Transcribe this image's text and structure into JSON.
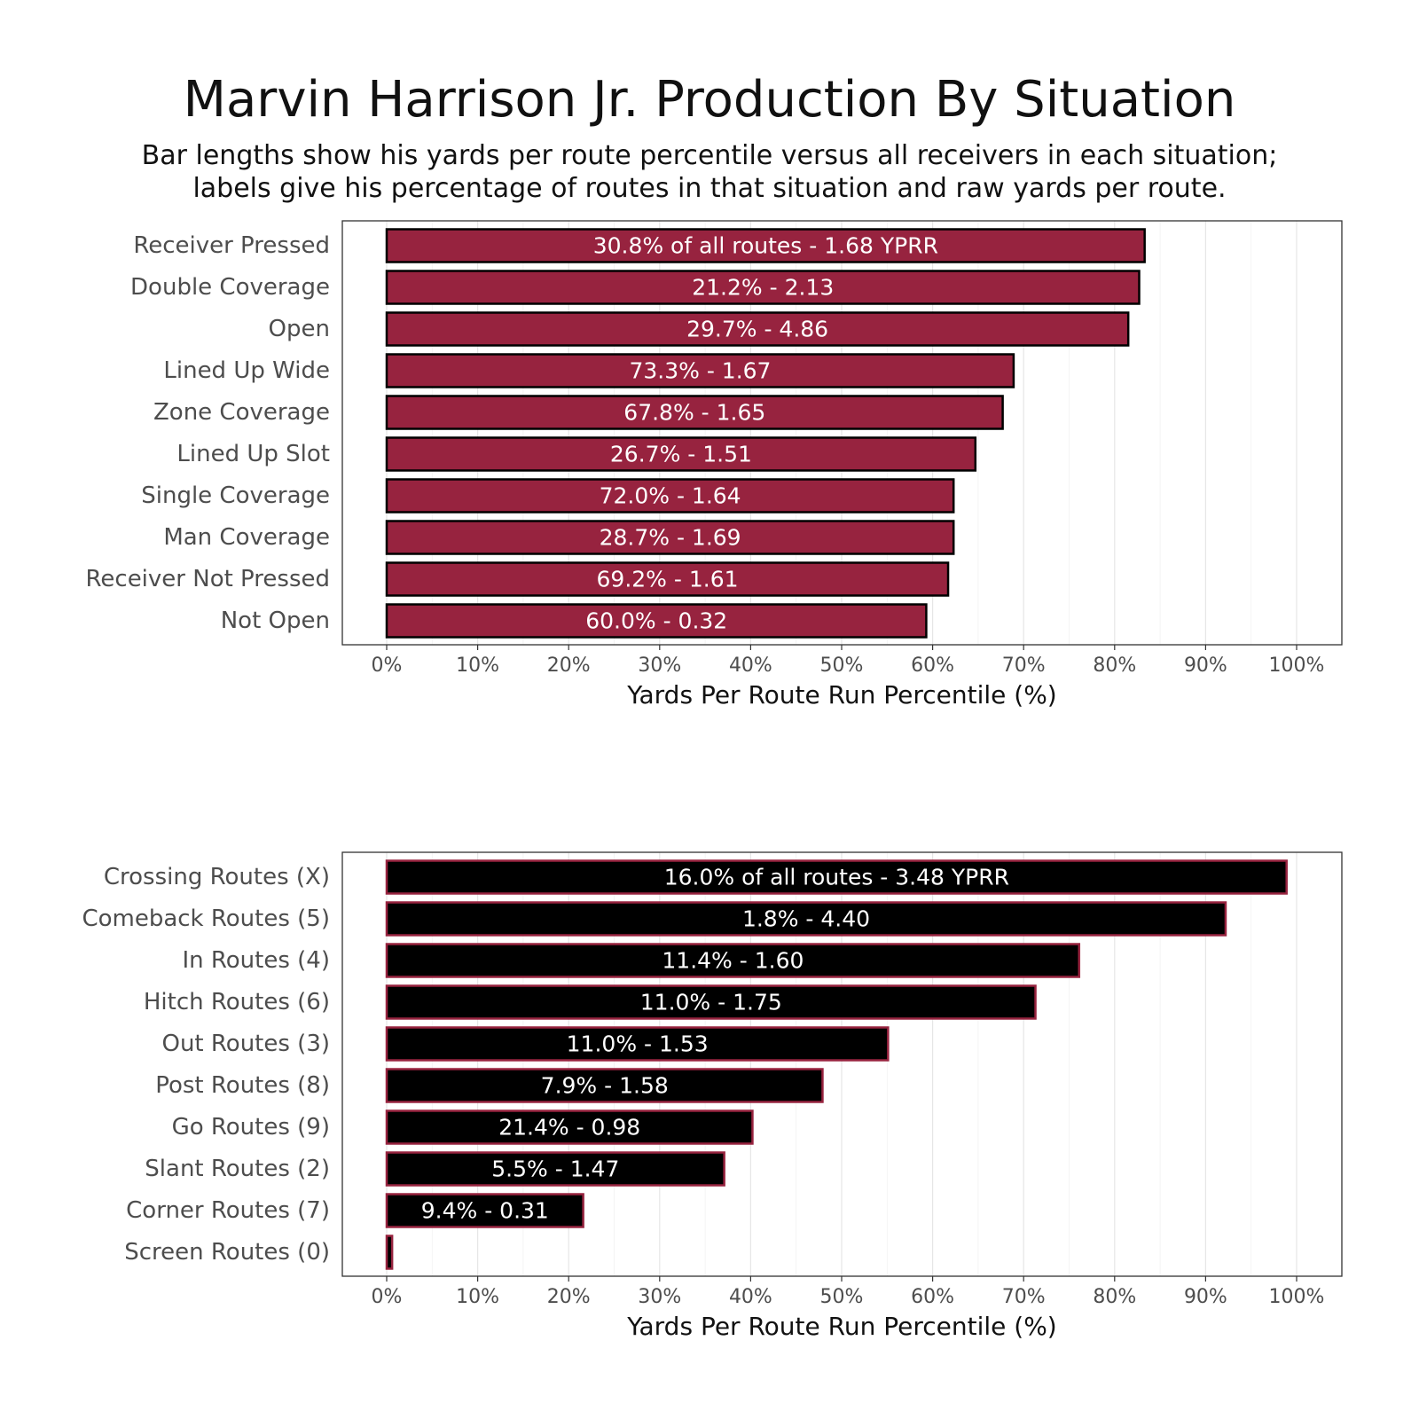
{
  "title": "Marvin Harrison Jr. Production By Situation",
  "subtitle_lines": [
    "Bar lengths show his yards per route percentile versus all receivers in each situation;",
    "labels give his percentage of routes in that situation and raw yards per route."
  ],
  "colors": {
    "top_fill": "#97233F",
    "top_stroke": "#000000",
    "bottom_fill": "#000000",
    "bottom_stroke": "#97233F"
  },
  "chart_data": [
    {
      "type": "bar",
      "orientation": "horizontal",
      "categories": [
        "Receiver Pressed",
        "Double Coverage",
        "Open",
        "Lined Up Wide",
        "Zone Coverage",
        "Lined Up Slot",
        "Single Coverage",
        "Man Coverage",
        "Receiver Not Pressed",
        "Not Open"
      ],
      "values": [
        83.3,
        82.7,
        81.5,
        68.9,
        67.7,
        64.7,
        62.3,
        62.3,
        61.7,
        59.3
      ],
      "labels": [
        "30.8% of all routes - 1.68 YPRR",
        "21.2% - 2.13",
        "29.7% - 4.86",
        "73.3% - 1.67",
        "67.8% - 1.65",
        "26.7% - 1.51",
        "72.0% - 1.64",
        "28.7% - 1.69",
        "69.2% - 1.61",
        "60.0% - 0.32"
      ],
      "xlabel": "Yards Per Route Run Percentile (%)",
      "xlim": [
        0,
        100
      ],
      "xticks": [
        "0%",
        "10%",
        "20%",
        "30%",
        "40%",
        "50%",
        "60%",
        "70%",
        "80%",
        "90%",
        "100%"
      ],
      "grid": true
    },
    {
      "type": "bar",
      "orientation": "horizontal",
      "categories": [
        "Crossing Routes (X)",
        "Comeback Routes (5)",
        "In Routes (4)",
        "Hitch Routes (6)",
        "Out Routes (3)",
        "Post Routes (8)",
        "Go Routes (9)",
        "Slant Routes (2)",
        "Corner Routes (7)",
        "Screen Routes (0)"
      ],
      "values": [
        98.9,
        92.2,
        76.1,
        71.3,
        55.1,
        47.9,
        40.2,
        37.1,
        21.6,
        0.6
      ],
      "labels": [
        "16.0% of all routes - 3.48 YPRR",
        "1.8% - 4.40",
        "11.4% - 1.60",
        "11.0% - 1.75",
        "11.0% - 1.53",
        "7.9% - 1.58",
        "21.4% - 0.98",
        "5.5% - 1.47",
        "9.4% - 0.31",
        ""
      ],
      "xlabel": "Yards Per Route Run Percentile (%)",
      "xlim": [
        0,
        100
      ],
      "xticks": [
        "0%",
        "10%",
        "20%",
        "30%",
        "40%",
        "50%",
        "60%",
        "70%",
        "80%",
        "90%",
        "100%"
      ],
      "grid": true
    }
  ]
}
